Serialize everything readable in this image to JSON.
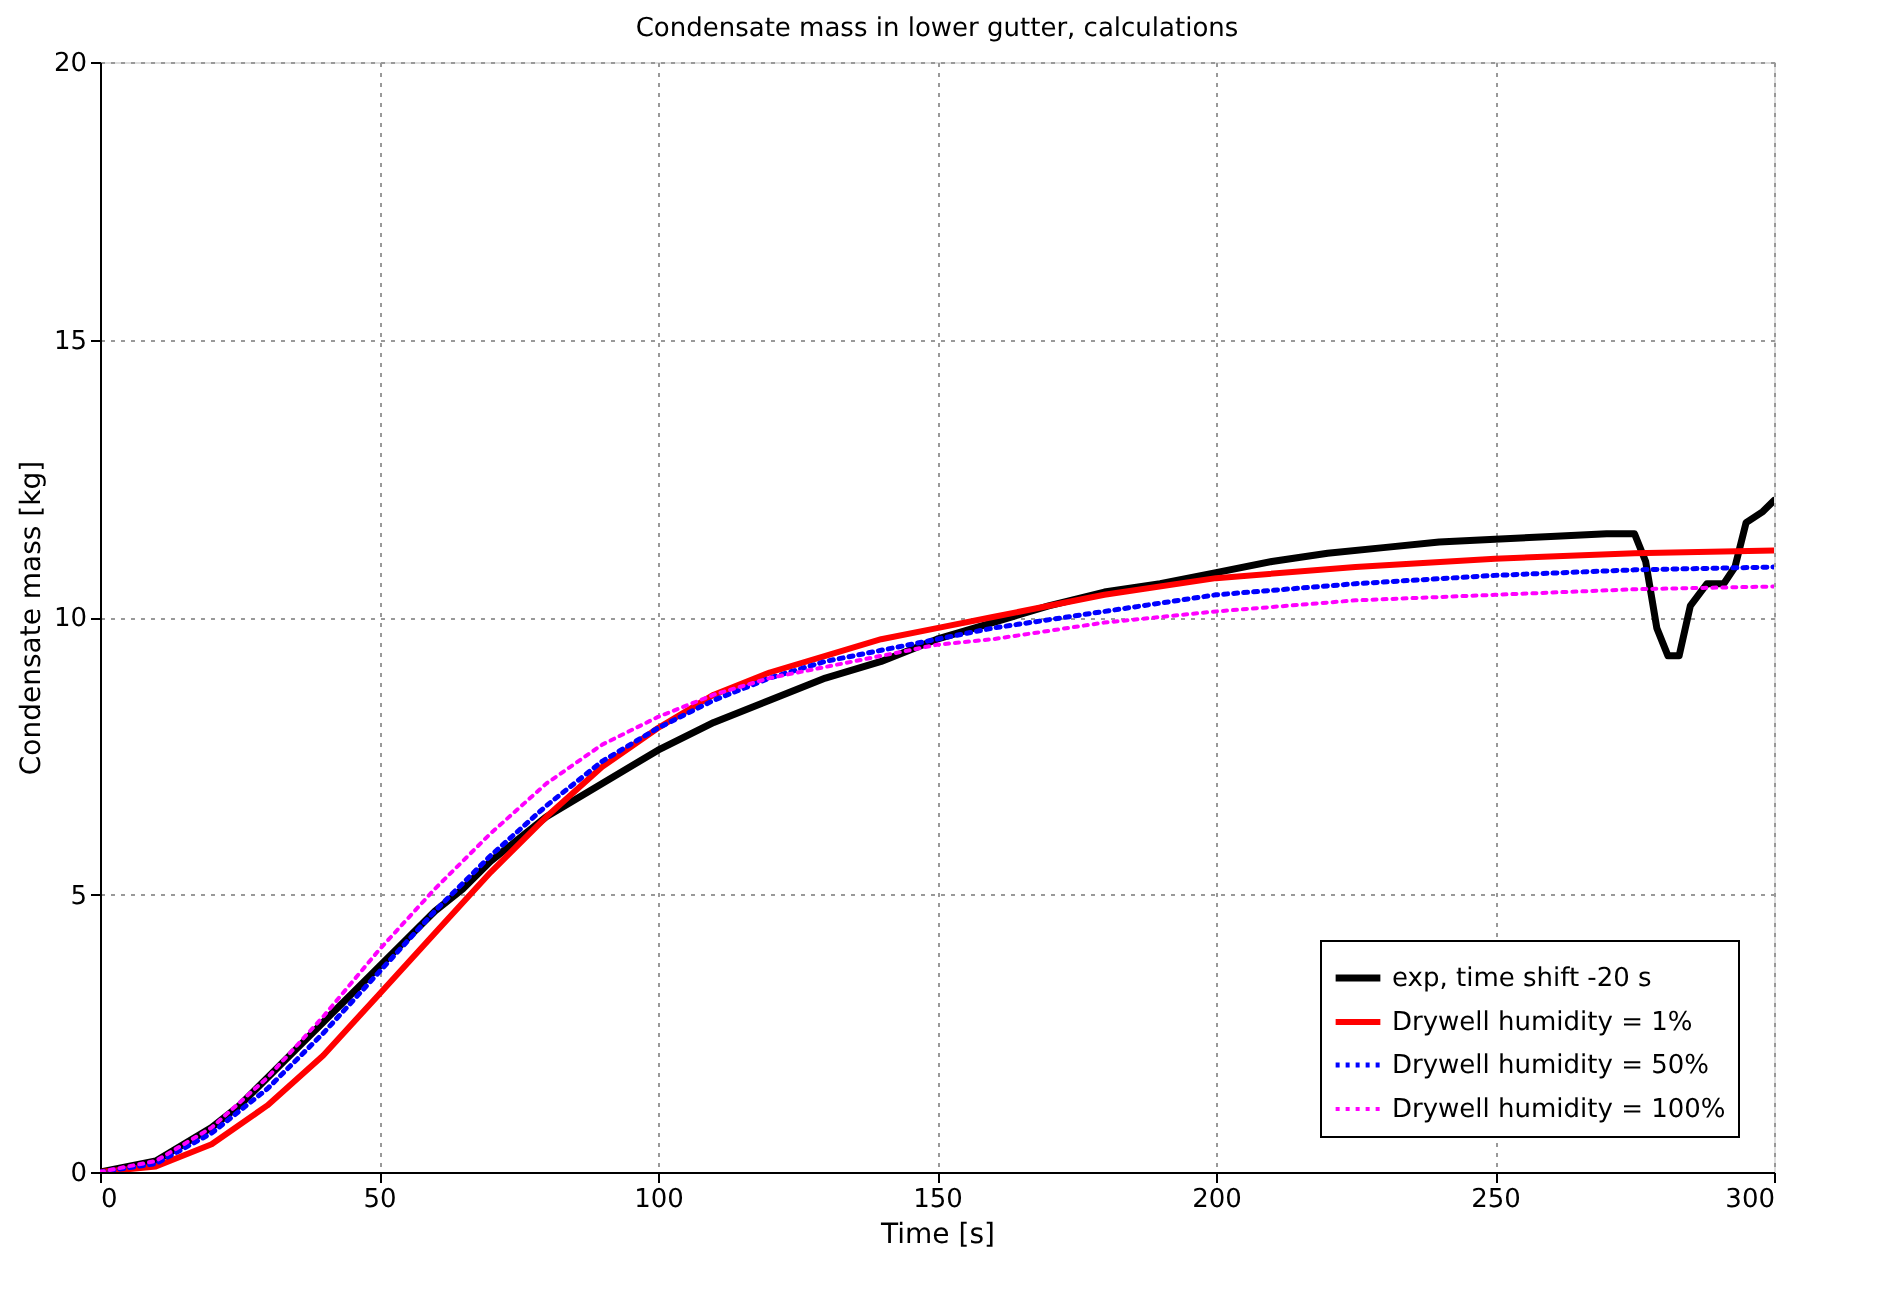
{
  "chart_data": {
    "type": "line",
    "title": "Condensate mass in lower gutter, calculations",
    "xlabel": "Time [s]",
    "ylabel": "Condensate mass [kg]",
    "xlim": [
      0,
      300
    ],
    "xticks": [
      0,
      50,
      100,
      150,
      200,
      250,
      300
    ],
    "ylim": [
      0,
      20
    ],
    "yticks": [
      0,
      5,
      10,
      15,
      20
    ],
    "grid": true,
    "legend": "bottom right",
    "marker": "none",
    "series": [
      {
        "name": "exp, time shift -20 s",
        "color": "#000000",
        "line_style": "solid",
        "x": [
          0,
          10,
          15,
          20,
          25,
          30,
          35,
          40,
          45,
          50,
          55,
          60,
          65,
          70,
          75,
          80,
          90,
          100,
          110,
          120,
          130,
          140,
          150,
          160,
          170,
          180,
          190,
          200,
          210,
          220,
          230,
          240,
          250,
          260,
          270,
          275,
          277,
          279,
          281,
          283,
          285,
          288,
          291,
          293,
          295,
          298,
          300
        ],
        "values": [
          0,
          0.2,
          0.5,
          0.8,
          1.2,
          1.7,
          2.2,
          2.7,
          3.2,
          3.7,
          4.2,
          4.7,
          5.1,
          5.6,
          6.0,
          6.4,
          7.0,
          7.6,
          8.1,
          8.5,
          8.9,
          9.2,
          9.6,
          9.9,
          10.2,
          10.45,
          10.6,
          10.8,
          11.0,
          11.15,
          11.25,
          11.35,
          11.4,
          11.45,
          11.5,
          11.5,
          11.0,
          9.8,
          9.3,
          9.3,
          10.2,
          10.6,
          10.6,
          10.9,
          11.7,
          11.9,
          12.1
        ]
      },
      {
        "name": "Drywell humidity = 1%",
        "color": "#ff0000",
        "line_style": "solid",
        "x": [
          0,
          10,
          20,
          30,
          40,
          50,
          60,
          70,
          80,
          90,
          100,
          110,
          120,
          130,
          140,
          150,
          160,
          180,
          200,
          225,
          250,
          275,
          300
        ],
        "values": [
          0,
          0.1,
          0.5,
          1.2,
          2.1,
          3.2,
          4.3,
          5.4,
          6.4,
          7.3,
          8.0,
          8.6,
          9.0,
          9.3,
          9.6,
          9.8,
          10.0,
          10.4,
          10.7,
          10.9,
          11.05,
          11.15,
          11.2
        ]
      },
      {
        "name": "Drywell humidity = 50%",
        "color": "#0000ff",
        "line_style": "dotted",
        "x": [
          0,
          10,
          20,
          30,
          40,
          50,
          60,
          70,
          80,
          90,
          100,
          110,
          120,
          130,
          140,
          150,
          160,
          180,
          200,
          225,
          250,
          275,
          300
        ],
        "values": [
          0,
          0.15,
          0.7,
          1.5,
          2.5,
          3.6,
          4.7,
          5.7,
          6.6,
          7.4,
          8.0,
          8.5,
          8.9,
          9.2,
          9.4,
          9.6,
          9.8,
          10.1,
          10.4,
          10.6,
          10.75,
          10.85,
          10.9
        ]
      },
      {
        "name": "Drywell humidity = 100%",
        "color": "#ff00ff",
        "line_style": "dotted",
        "x": [
          0,
          10,
          20,
          30,
          40,
          50,
          60,
          70,
          80,
          90,
          100,
          110,
          120,
          130,
          140,
          150,
          160,
          180,
          200,
          225,
          250,
          275,
          300
        ],
        "values": [
          0,
          0.2,
          0.8,
          1.7,
          2.8,
          4.0,
          5.1,
          6.1,
          7.0,
          7.7,
          8.2,
          8.6,
          8.9,
          9.1,
          9.3,
          9.5,
          9.6,
          9.9,
          10.1,
          10.3,
          10.4,
          10.5,
          10.55
        ]
      }
    ]
  }
}
